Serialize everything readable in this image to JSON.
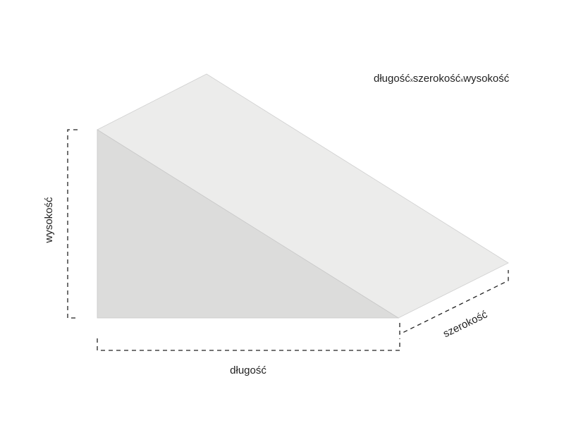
{
  "title": {
    "length": "długość",
    "times1": "x",
    "width": "szerokość",
    "times2": "x",
    "height": "wysokość"
  },
  "labels": {
    "height": "wysokość",
    "length": "długość",
    "width": "szerokość"
  },
  "colors": {
    "side_face": "#dcdcdb",
    "top_face": "#ececeb",
    "edge": "#c8c8c8",
    "dimension_lines": "#222222"
  }
}
